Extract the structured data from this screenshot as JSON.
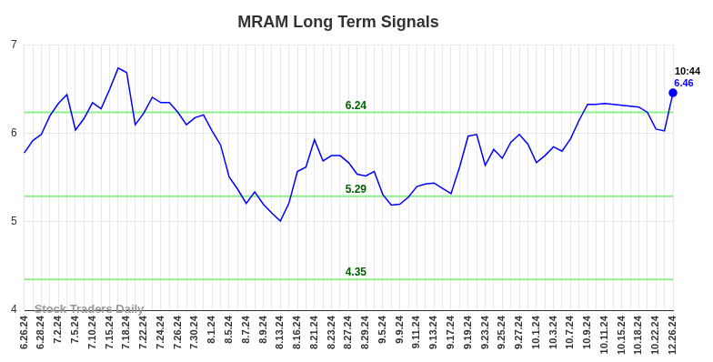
{
  "chart_data": {
    "type": "line",
    "title": "MRAM Long Term Signals",
    "categories": [
      "6.26.24",
      null,
      "6.28.24",
      null,
      "7.2.24",
      null,
      "7.5.24",
      null,
      "7.10.24",
      null,
      "7.15.24",
      null,
      "7.18.24",
      null,
      "7.22.24",
      null,
      "7.24.24",
      null,
      "7.26.24",
      null,
      "7.30.24",
      null,
      "8.1.24",
      null,
      "8.5.24",
      null,
      "8.7.24",
      null,
      "8.9.24",
      null,
      "8.13.24",
      null,
      "8.16.24",
      null,
      "8.21.24",
      null,
      "8.23.24",
      null,
      "8.27.24",
      null,
      "8.29.24",
      null,
      "9.5.24",
      null,
      "9.9.24",
      null,
      "9.11.24",
      null,
      "9.13.24",
      null,
      "9.17.24",
      null,
      "9.19.24",
      null,
      "9.23.24",
      null,
      "9.25.24",
      null,
      "9.27.24",
      null,
      "10.1.24",
      null,
      "10.3.24",
      null,
      "10.7.24",
      null,
      "10.9.24",
      null,
      "10.11.24",
      null,
      "10.15.24",
      null,
      "10.18.24",
      null,
      "10.22.24",
      null,
      "12.26.24"
    ],
    "values": [
      5.78,
      5.92,
      5.99,
      6.2,
      6.34,
      6.44,
      6.04,
      6.17,
      6.35,
      6.28,
      6.5,
      6.74,
      6.69,
      6.1,
      6.23,
      6.41,
      6.35,
      6.35,
      6.24,
      6.1,
      6.18,
      6.21,
      6.03,
      5.87,
      5.51,
      5.37,
      5.21,
      5.34,
      5.2,
      5.1,
      5.01,
      5.21,
      5.57,
      5.62,
      5.93,
      5.69,
      5.75,
      5.75,
      5.67,
      5.54,
      5.52,
      5.57,
      5.31,
      5.19,
      5.2,
      5.28,
      5.4,
      5.43,
      5.44,
      5.38,
      5.32,
      5.62,
      5.97,
      5.99,
      5.64,
      5.82,
      5.72,
      5.9,
      5.99,
      5.88,
      5.67,
      5.75,
      5.85,
      5.8,
      5.94,
      6.15,
      6.33,
      6.33,
      6.34,
      6.33,
      6.32,
      6.31,
      6.3,
      6.24,
      6.05,
      6.03,
      6.46
    ],
    "color": "#0000ff",
    "ylim": [
      4,
      7
    ],
    "yticks": [
      4,
      5,
      6,
      7
    ],
    "grid": true,
    "levels": [
      {
        "value": 6.24,
        "label": "6.24",
        "color": "#90ee90"
      },
      {
        "value": 5.29,
        "label": "5.29",
        "color": "#90ee90"
      },
      {
        "value": 4.35,
        "label": "4.35",
        "color": "#90ee90"
      }
    ],
    "last_point": {
      "time": "10:44",
      "value_label": "6.46"
    },
    "watermark": "Stock Traders Daily"
  }
}
